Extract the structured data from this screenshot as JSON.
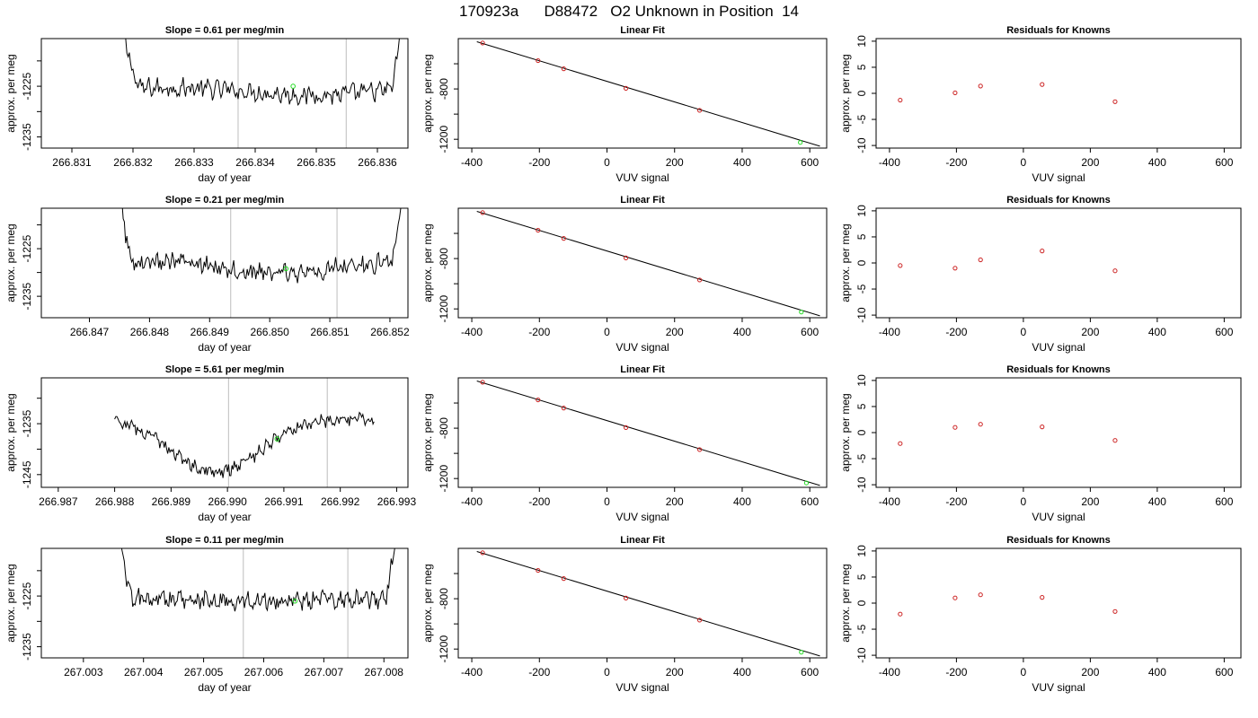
{
  "title": "170923a      D88472   O2 Unknown in Position  14",
  "colors": {
    "trace": "#000000",
    "vline": "#c8c8c8",
    "unknown": "#22dd22",
    "known": "#cc2222",
    "fitline": "#000000"
  },
  "chart_data": [
    {
      "type": "line",
      "title": "Slope =  0.61  per meg/min",
      "xlabel": "day of year",
      "ylabel": "approx. per meg",
      "xlim": [
        266.8305,
        266.8365
      ],
      "ylim": [
        -1237.2,
        -1215.6
      ],
      "xticks": [
        266.831,
        266.832,
        266.833,
        266.834,
        266.835,
        266.836
      ],
      "xtick_labels": [
        "266.831",
        "266.832",
        "266.833",
        "266.834",
        "266.835",
        "266.836"
      ],
      "yticks": [
        -1235,
        -1225
      ],
      "ytick_labels": [
        "-1235",
        "-1225"
      ],
      "trace": {
        "x_start": 266.8318,
        "x_end": 266.8364,
        "level": -1225.3,
        "amplitude": 1.5,
        "dip_center": 266.8349,
        "dip_width": 0.0012,
        "dip_depth": 1.5,
        "left_rise_end": 266.8321,
        "right_rise_start": 266.8362
      },
      "vlines": [
        266.83372,
        266.83549
      ],
      "unknown_point": {
        "x": 266.83462,
        "y": -1225.0
      }
    },
    {
      "type": "scatter",
      "title": "Linear Fit",
      "xlabel": "VUV signal",
      "ylabel": "approx. per meg",
      "xlim": [
        -440,
        650
      ],
      "ylim": [
        -1270,
        -400
      ],
      "xticks": [
        -400,
        -200,
        0,
        200,
        400,
        600
      ],
      "xtick_labels": [
        "-400",
        "-200",
        "0",
        "200",
        "400",
        "600"
      ],
      "yticks": [
        -1200,
        -800
      ],
      "ytick_labels": [
        "-1200",
        "-800"
      ],
      "knowns": [
        {
          "x": -368,
          "y": -435
        },
        {
          "x": -204,
          "y": -575
        },
        {
          "x": -128,
          "y": -640
        },
        {
          "x": 56,
          "y": -795
        },
        {
          "x": 274,
          "y": -970
        }
      ],
      "unknown": {
        "x": 572,
        "y": -1225
      },
      "fit": {
        "x1": -385,
        "y1": -425,
        "x2": 630,
        "y2": -1255
      }
    },
    {
      "type": "scatter",
      "title": "Residuals for Knowns",
      "xlabel": "VUV signal",
      "ylabel": "approx. per meg",
      "xlim": [
        -440,
        650
      ],
      "ylim": [
        -10.5,
        10.5
      ],
      "xticks": [
        -400,
        -200,
        0,
        200,
        400,
        600
      ],
      "xtick_labels": [
        "-400",
        "-200",
        "0",
        "200",
        "400",
        "600"
      ],
      "yticks": [
        -10,
        -5,
        0,
        5,
        10
      ],
      "ytick_labels": [
        "-10",
        "-5",
        "0",
        "5",
        "10"
      ],
      "points": [
        {
          "x": -368,
          "y": -1.3
        },
        {
          "x": -204,
          "y": 0.1
        },
        {
          "x": -128,
          "y": 1.4
        },
        {
          "x": 56,
          "y": 1.7
        },
        {
          "x": 274,
          "y": -1.6
        }
      ]
    },
    {
      "type": "line",
      "title": "Slope =  0.21  per meg/min",
      "xlabel": "day of year",
      "ylabel": "approx. per meg",
      "xlim": [
        266.8462,
        266.8523
      ],
      "ylim": [
        -1239.5,
        -1216.5
      ],
      "xticks": [
        266.847,
        266.848,
        266.849,
        266.85,
        266.851,
        266.852
      ],
      "xtick_labels": [
        "266.847",
        "266.848",
        "266.849",
        "266.850",
        "266.851",
        "266.852"
      ],
      "yticks": [
        -1235,
        -1225
      ],
      "ytick_labels": [
        "-1235",
        "-1225"
      ],
      "trace": {
        "x_start": 266.8475,
        "x_end": 266.8522,
        "level": -1227.5,
        "amplitude": 1.6,
        "dip_center": 266.8502,
        "dip_width": 0.0013,
        "dip_depth": 2.6,
        "left_rise_end": 266.8477,
        "right_rise_start": 266.852
      },
      "vlines": [
        266.84935,
        266.85112
      ],
      "unknown_point": {
        "x": 266.85027,
        "y": -1229.2
      }
    },
    {
      "type": "scatter",
      "title": "Linear Fit",
      "xlabel": "VUV signal",
      "ylabel": "approx. per meg",
      "xlim": [
        -440,
        650
      ],
      "ylim": [
        -1270,
        -400
      ],
      "xticks": [
        -400,
        -200,
        0,
        200,
        400,
        600
      ],
      "xtick_labels": [
        "-400",
        "-200",
        "0",
        "200",
        "400",
        "600"
      ],
      "yticks": [
        -1200,
        -800
      ],
      "ytick_labels": [
        "-1200",
        "-800"
      ],
      "knowns": [
        {
          "x": -368,
          "y": -435
        },
        {
          "x": -204,
          "y": -575
        },
        {
          "x": -128,
          "y": -640
        },
        {
          "x": 56,
          "y": -795
        },
        {
          "x": 274,
          "y": -970
        }
      ],
      "unknown": {
        "x": 575,
        "y": -1225
      },
      "fit": {
        "x1": -385,
        "y1": -425,
        "x2": 630,
        "y2": -1255
      }
    },
    {
      "type": "scatter",
      "title": "Residuals for Knowns",
      "xlabel": "VUV signal",
      "ylabel": "approx. per meg",
      "xlim": [
        -440,
        650
      ],
      "ylim": [
        -10.5,
        10.5
      ],
      "xticks": [
        -400,
        -200,
        0,
        200,
        400,
        600
      ],
      "xtick_labels": [
        "-400",
        "-200",
        "0",
        "200",
        "400",
        "600"
      ],
      "yticks": [
        -10,
        -5,
        0,
        5,
        10
      ],
      "ytick_labels": [
        "-10",
        "-5",
        "0",
        "5",
        "10"
      ],
      "points": [
        {
          "x": -368,
          "y": -0.5
        },
        {
          "x": -204,
          "y": -1.0
        },
        {
          "x": -128,
          "y": 0.6
        },
        {
          "x": 56,
          "y": 2.3
        },
        {
          "x": 274,
          "y": -1.5
        }
      ]
    },
    {
      "type": "line",
      "title": "Slope =  5.61  per meg/min",
      "xlabel": "day of year",
      "ylabel": "approx. per meg",
      "xlim": [
        266.9867,
        266.9932
      ],
      "ylim": [
        -1247.5,
        -1226.0
      ],
      "xticks": [
        266.987,
        266.988,
        266.989,
        266.99,
        266.991,
        266.992,
        266.993
      ],
      "xtick_labels": [
        "266.987",
        "266.988",
        "266.989",
        "266.990",
        "266.991",
        "266.992",
        "266.993"
      ],
      "yticks": [
        -1245,
        -1235
      ],
      "ytick_labels": [
        "-1245",
        "-1235"
      ],
      "trace": {
        "x_start": 266.988,
        "x_end": 266.9926,
        "level": -1234.0,
        "amplitude": 1.0,
        "dip_center": 266.9898,
        "dip_width": 0.0011,
        "dip_depth": 10.5,
        "left_rise_end": 266.988,
        "right_rise_start": 266.9926
      },
      "vlines": [
        266.99002,
        266.99177
      ],
      "unknown_point": {
        "x": 266.99088,
        "y": -1238.0
      }
    },
    {
      "type": "scatter",
      "title": "Linear Fit",
      "xlabel": "VUV signal",
      "ylabel": "approx. per meg",
      "xlim": [
        -440,
        650
      ],
      "ylim": [
        -1270,
        -400
      ],
      "xticks": [
        -400,
        -200,
        0,
        200,
        400,
        600
      ],
      "xtick_labels": [
        "-400",
        "-200",
        "0",
        "200",
        "400",
        "600"
      ],
      "yticks": [
        -1200,
        -800
      ],
      "ytick_labels": [
        "-1200",
        "-800"
      ],
      "knowns": [
        {
          "x": -368,
          "y": -435
        },
        {
          "x": -204,
          "y": -575
        },
        {
          "x": -128,
          "y": -640
        },
        {
          "x": 56,
          "y": -795
        },
        {
          "x": 274,
          "y": -970
        }
      ],
      "unknown": {
        "x": 590,
        "y": -1235
      },
      "fit": {
        "x1": -385,
        "y1": -425,
        "x2": 630,
        "y2": -1255
      }
    },
    {
      "type": "scatter",
      "title": "Residuals for Knowns",
      "xlabel": "VUV signal",
      "ylabel": "approx. per meg",
      "xlim": [
        -440,
        650
      ],
      "ylim": [
        -10.5,
        10.5
      ],
      "xticks": [
        -400,
        -200,
        0,
        200,
        400,
        600
      ],
      "xtick_labels": [
        "-400",
        "-200",
        "0",
        "200",
        "400",
        "600"
      ],
      "yticks": [
        -10,
        -5,
        0,
        5,
        10
      ],
      "ytick_labels": [
        "-10",
        "-5",
        "0",
        "5",
        "10"
      ],
      "points": [
        {
          "x": -368,
          "y": -2.1
        },
        {
          "x": -204,
          "y": 1.0
        },
        {
          "x": -128,
          "y": 1.6
        },
        {
          "x": 56,
          "y": 1.1
        },
        {
          "x": 274,
          "y": -1.5
        }
      ]
    },
    {
      "type": "line",
      "title": "Slope =  0.11  per meg/min",
      "xlabel": "day of year",
      "ylabel": "approx. per meg",
      "xlim": [
        267.0023,
        267.0084
      ],
      "ylim": [
        -1237.2,
        -1215.6
      ],
      "xticks": [
        267.003,
        267.004,
        267.005,
        267.006,
        267.007,
        267.008
      ],
      "xtick_labels": [
        "267.003",
        "267.004",
        "267.005",
        "267.006",
        "267.007",
        "267.008"
      ],
      "yticks": [
        -1235,
        -1225
      ],
      "ytick_labels": [
        "-1235",
        "-1225"
      ],
      "trace": {
        "x_start": 267.0036,
        "x_end": 267.0082,
        "level": -1225.6,
        "amplitude": 1.5,
        "dip_center": 267.006,
        "dip_width": 0.0012,
        "dip_depth": 0.4,
        "left_rise_end": 267.0038,
        "right_rise_start": 267.008
      },
      "vlines": [
        267.00566,
        267.0074
      ],
      "unknown_point": {
        "x": 267.00652,
        "y": -1226.0
      }
    },
    {
      "type": "scatter",
      "title": "Linear Fit",
      "xlabel": "VUV signal",
      "ylabel": "approx. per meg",
      "xlim": [
        -440,
        650
      ],
      "ylim": [
        -1270,
        -400
      ],
      "xticks": [
        -400,
        -200,
        0,
        200,
        400,
        600
      ],
      "xtick_labels": [
        "-400",
        "-200",
        "0",
        "200",
        "400",
        "600"
      ],
      "yticks": [
        -1200,
        -800
      ],
      "ytick_labels": [
        "-1200",
        "-800"
      ],
      "knowns": [
        {
          "x": -368,
          "y": -435
        },
        {
          "x": -204,
          "y": -575
        },
        {
          "x": -128,
          "y": -640
        },
        {
          "x": 56,
          "y": -795
        },
        {
          "x": 274,
          "y": -970
        }
      ],
      "unknown": {
        "x": 575,
        "y": -1225
      },
      "fit": {
        "x1": -385,
        "y1": -425,
        "x2": 630,
        "y2": -1255
      }
    },
    {
      "type": "scatter",
      "title": "Residuals for Knowns",
      "xlabel": "VUV signal",
      "ylabel": "approx. per meg",
      "xlim": [
        -440,
        650
      ],
      "ylim": [
        -10.5,
        10.5
      ],
      "xticks": [
        -400,
        -200,
        0,
        200,
        400,
        600
      ],
      "xtick_labels": [
        "-400",
        "-200",
        "0",
        "200",
        "400",
        "600"
      ],
      "yticks": [
        -10,
        -5,
        0,
        5,
        10
      ],
      "ytick_labels": [
        "-10",
        "-5",
        "0",
        "5",
        "10"
      ],
      "points": [
        {
          "x": -368,
          "y": -2.1
        },
        {
          "x": -204,
          "y": 1.0
        },
        {
          "x": -128,
          "y": 1.6
        },
        {
          "x": 56,
          "y": 1.1
        },
        {
          "x": 274,
          "y": -1.6
        }
      ]
    }
  ]
}
